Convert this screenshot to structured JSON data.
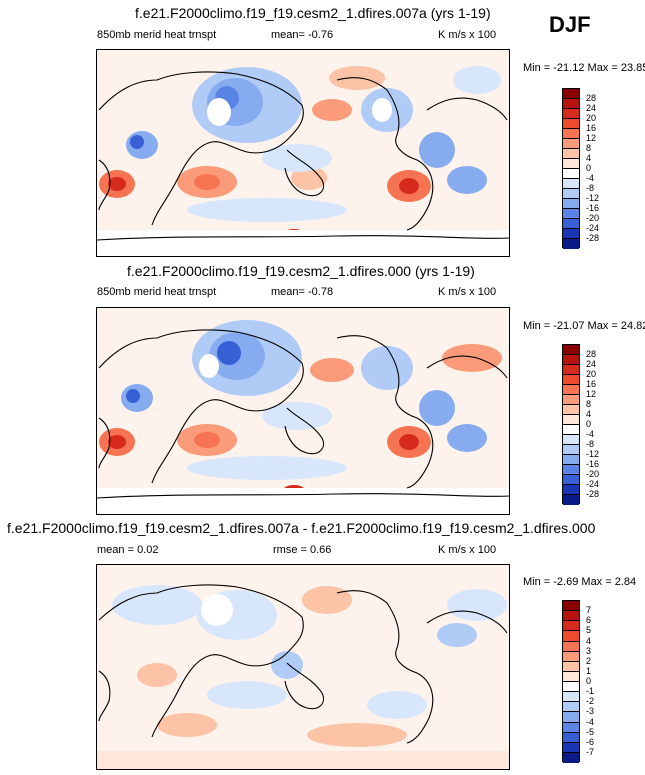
{
  "season": "DJF",
  "panels": [
    {
      "title": "f.e21.F2000climo.f19_f19.cesm2_1.dfires.007a (yrs 1-19)",
      "variable": "850mb merid heat trnspt",
      "stat_label": "mean=",
      "stat_value": "-0.76",
      "units": "K m/s x 100",
      "min_label": "Min = ",
      "min_value": "-21.12",
      "max_label": "Max = ",
      "max_value": "23.85",
      "levels": [
        "28",
        "24",
        "20",
        "16",
        "12",
        "8",
        "4",
        "0",
        "-4",
        "-8",
        "-12",
        "-16",
        "-20",
        "-24",
        "-28"
      ]
    },
    {
      "title": "f.e21.F2000climo.f19_f19.cesm2_1.dfires.000 (yrs 1-19)",
      "variable": "850mb merid heat trnspt",
      "stat_label": "mean=",
      "stat_value": "-0.78",
      "units": "K m/s x 100",
      "min_label": "Min = ",
      "min_value": "-21.07",
      "max_label": "Max = ",
      "max_value": "24.82",
      "levels": [
        "28",
        "24",
        "20",
        "16",
        "12",
        "8",
        "4",
        "0",
        "-4",
        "-8",
        "-12",
        "-16",
        "-20",
        "-24",
        "-28"
      ]
    },
    {
      "title": "f.e21.F2000climo.f19_f19.cesm2_1.dfires.007a - f.e21.F2000climo.f19_f19.cesm2_1.dfires.000",
      "stat_label": "mean =",
      "stat_value": "0.02",
      "stat2_label": "rmse =",
      "stat2_value": "0.66",
      "units": "K m/s x 100",
      "min_label": "Min = ",
      "min_value": "-2.69",
      "max_label": "Max = ",
      "max_value": "2.84",
      "levels": [
        "7",
        "6",
        "5",
        "4",
        "3",
        "2",
        "1",
        "0",
        "-1",
        "-2",
        "-3",
        "-4",
        "-5",
        "-6",
        "-7"
      ]
    }
  ],
  "colorbar_colors": [
    "#8b0000",
    "#b3140f",
    "#d62a1c",
    "#ee4a2e",
    "#f77452",
    "#fb9b79",
    "#fcc3a7",
    "#fde6da",
    "#ffffff",
    "#d8e6fb",
    "#b0cbf5",
    "#86abef",
    "#5a85e6",
    "#3760d6",
    "#1a36b5",
    "#0a1a86"
  ],
  "chart_data": [
    {
      "type": "heatmap",
      "title": "f.e21.F2000climo.f19_f19.cesm2_1.dfires.007a (yrs 1-19)",
      "variable": "850mb merid heat trnspt",
      "units": "K m/s x 100",
      "season": "DJF",
      "mean": -0.76,
      "min": -21.12,
      "max": 23.85,
      "levels": [
        -28,
        -24,
        -20,
        -16,
        -12,
        -8,
        -4,
        0,
        4,
        8,
        12,
        16,
        20,
        24,
        28
      ]
    },
    {
      "type": "heatmap",
      "title": "f.e21.F2000climo.f19_f19.cesm2_1.dfires.000 (yrs 1-19)",
      "variable": "850mb merid heat trnspt",
      "units": "K m/s x 100",
      "season": "DJF",
      "mean": -0.78,
      "min": -21.07,
      "max": 24.82,
      "levels": [
        -28,
        -24,
        -20,
        -16,
        -12,
        -8,
        -4,
        0,
        4,
        8,
        12,
        16,
        20,
        24,
        28
      ]
    },
    {
      "type": "heatmap",
      "title": "f.e21.F2000climo.f19_f19.cesm2_1.dfires.007a - f.e21.F2000climo.f19_f19.cesm2_1.dfires.000",
      "units": "K m/s x 100",
      "season": "DJF",
      "mean": 0.02,
      "rmse": 0.66,
      "min": -2.69,
      "max": 2.84,
      "levels": [
        -7,
        -6,
        -5,
        -4,
        -3,
        -2,
        -1,
        0,
        1,
        2,
        3,
        4,
        5,
        6,
        7
      ]
    }
  ]
}
